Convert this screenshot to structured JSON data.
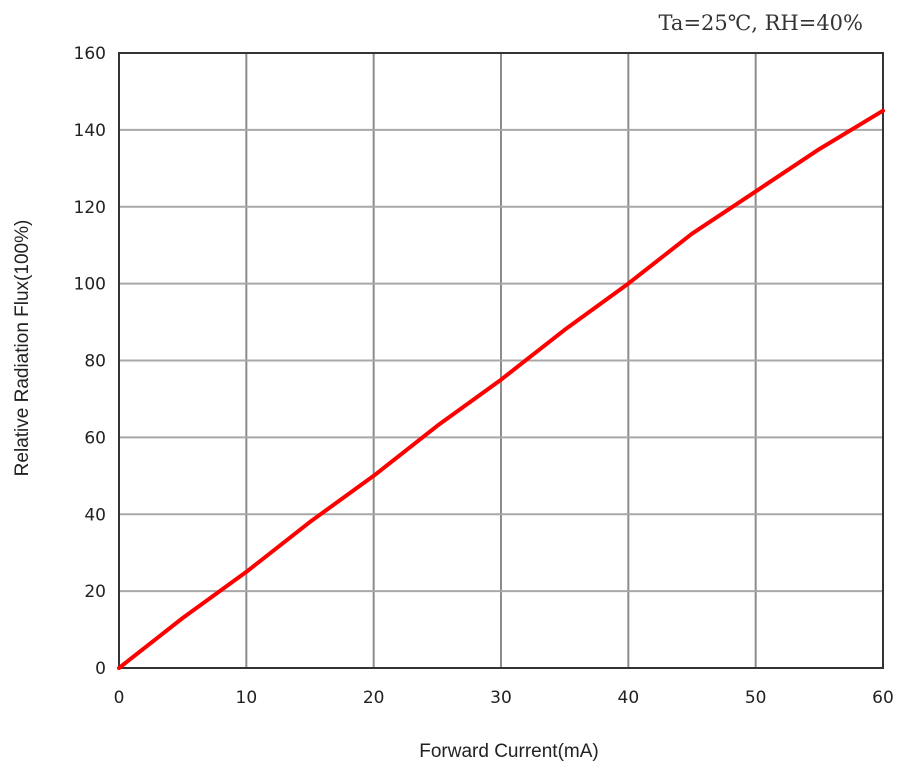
{
  "chart_data": {
    "type": "line",
    "annotation": "Ta=25℃, RH=40%",
    "xlabel": "Forward Current(mA)",
    "ylabel": "Relative Radiation Flux(100%)",
    "xlim": [
      0,
      60
    ],
    "ylim": [
      0,
      160
    ],
    "x_ticks": [
      "0",
      "10",
      "20",
      "30",
      "40",
      "50",
      "60"
    ],
    "y_ticks": [
      "0",
      "20",
      "40",
      "60",
      "80",
      "100",
      "120",
      "140",
      "160"
    ],
    "grid": true,
    "series": [
      {
        "color": "#ff0000",
        "x": [
          0,
          5,
          10,
          15,
          20,
          25,
          30,
          35,
          40,
          45,
          50,
          55,
          60
        ],
        "y": [
          0,
          13,
          25,
          38,
          50,
          63,
          75,
          88,
          100,
          113,
          124,
          135,
          145
        ]
      }
    ]
  }
}
